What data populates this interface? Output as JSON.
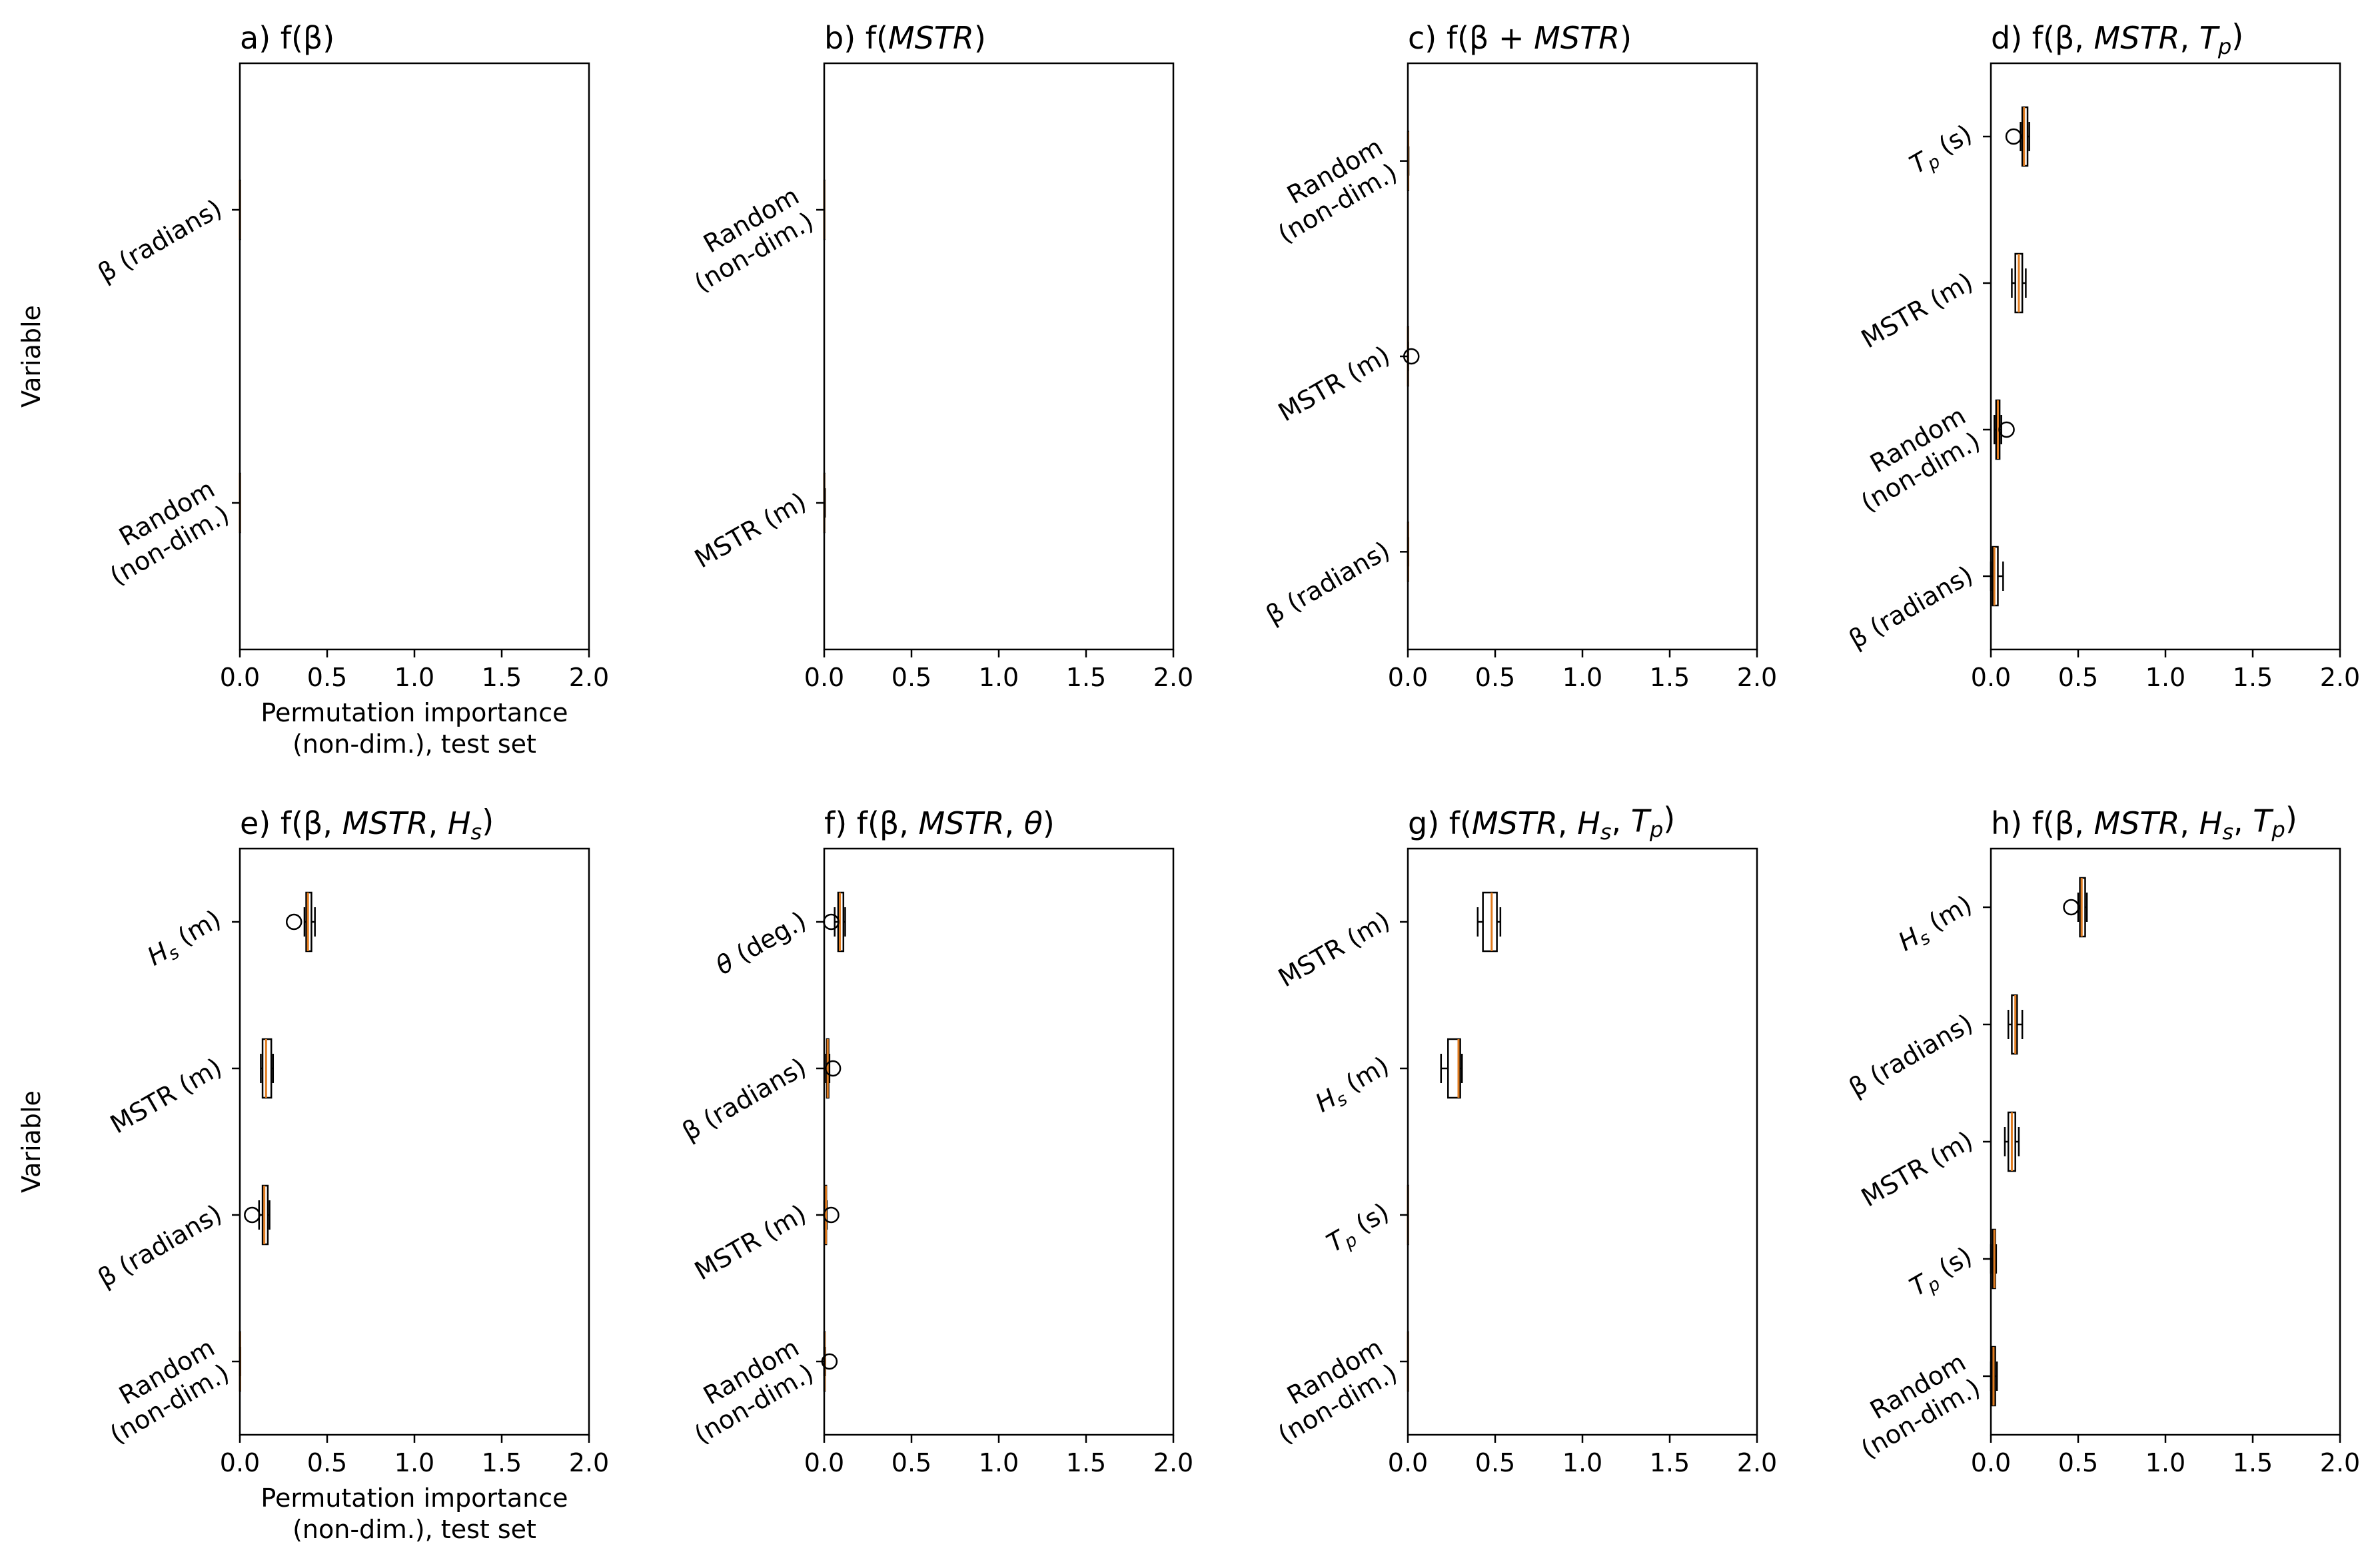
{
  "ylabel": "Variable",
  "xlabel_line1": "Permutation importance",
  "xlabel_line2": "(non-dim.), test set",
  "xticks": [
    "0.0",
    "0.5",
    "1.0",
    "1.5",
    "2.0"
  ],
  "colors": {
    "median": "#e07b1f",
    "box": "#000000"
  },
  "chart_data": [
    {
      "type": "boxplot",
      "orientation": "horizontal",
      "xlim": [
        0,
        2
      ],
      "title": "a) f(β)",
      "variables": [
        "β (radians)",
        "Random\n(non-dim.)"
      ],
      "boxes": [
        {
          "min": 0.0,
          "q1": 0.0,
          "median": 0.0,
          "q3": 0.0,
          "max": 0.0,
          "fliers": []
        },
        {
          "min": 0.0,
          "q1": 0.0,
          "median": 0.0,
          "q3": 0.0,
          "max": 0.0,
          "fliers": []
        }
      ]
    },
    {
      "type": "boxplot",
      "orientation": "horizontal",
      "xlim": [
        0,
        2
      ],
      "title": "b) f(MSTR)",
      "variables": [
        "Random\n(non-dim.)",
        "MSTR (m)"
      ],
      "boxes": [
        {
          "min": 0.0,
          "q1": 0.0,
          "median": 0.0,
          "q3": 0.0,
          "max": 0.0,
          "fliers": []
        },
        {
          "min": 0.0,
          "q1": 0.0,
          "median": 0.0,
          "q3": 0.0,
          "max": 0.005,
          "fliers": []
        }
      ]
    },
    {
      "type": "boxplot",
      "orientation": "horizontal",
      "xlim": [
        0,
        2
      ],
      "title": "c) f(β + MSTR)",
      "variables": [
        "Random\n(non-dim.)",
        "MSTR (m)",
        "β (radians)"
      ],
      "boxes": [
        {
          "min": 0.0,
          "q1": 0.0,
          "median": 0.002,
          "q3": 0.003,
          "max": 0.004,
          "fliers": []
        },
        {
          "min": 0.0,
          "q1": 0.0,
          "median": 0.0,
          "q3": 0.001,
          "max": 0.002,
          "fliers": [
            0.02
          ]
        },
        {
          "min": 0.0,
          "q1": 0.0,
          "median": 0.001,
          "q3": 0.002,
          "max": 0.003,
          "fliers": []
        }
      ]
    },
    {
      "type": "boxplot",
      "orientation": "horizontal",
      "xlim": [
        0,
        2
      ],
      "title": "d) f(β, MSTR, Tp)",
      "variables": [
        "Tp (s)",
        "MSTR (m)",
        "Random\n(non-dim.)",
        "β (radians)"
      ],
      "boxes": [
        {
          "min": 0.17,
          "q1": 0.18,
          "median": 0.19,
          "q3": 0.21,
          "max": 0.22,
          "fliers": [
            0.13
          ]
        },
        {
          "min": 0.12,
          "q1": 0.14,
          "median": 0.16,
          "q3": 0.18,
          "max": 0.2,
          "fliers": []
        },
        {
          "min": 0.02,
          "q1": 0.03,
          "median": 0.04,
          "q3": 0.05,
          "max": 0.06,
          "fliers": [
            0.09
          ]
        },
        {
          "min": 0.0,
          "q1": 0.01,
          "median": 0.02,
          "q3": 0.04,
          "max": 0.07,
          "fliers": []
        }
      ]
    },
    {
      "type": "boxplot",
      "orientation": "horizontal",
      "xlim": [
        0,
        2
      ],
      "title": "e) f(β, MSTR, Hs)",
      "variables": [
        "Hs (m)",
        "MSTR (m)",
        "β (radians)",
        "Random\n(non-dim.)"
      ],
      "boxes": [
        {
          "min": 0.37,
          "q1": 0.38,
          "median": 0.39,
          "q3": 0.41,
          "max": 0.43,
          "fliers": [
            0.31
          ]
        },
        {
          "min": 0.12,
          "q1": 0.13,
          "median": 0.15,
          "q3": 0.18,
          "max": 0.19,
          "fliers": []
        },
        {
          "min": 0.11,
          "q1": 0.13,
          "median": 0.14,
          "q3": 0.16,
          "max": 0.17,
          "fliers": [
            0.07
          ]
        },
        {
          "min": 0.0,
          "q1": 0.0,
          "median": 0.001,
          "q3": 0.002,
          "max": 0.003,
          "fliers": []
        }
      ]
    },
    {
      "type": "boxplot",
      "orientation": "horizontal",
      "xlim": [
        0,
        2
      ],
      "title": "f) f(β, MSTR, θ)",
      "variables": [
        "θ (deg.)",
        "β (radians)",
        "MSTR (m)",
        "Random\n(non-dim.)"
      ],
      "boxes": [
        {
          "min": 0.06,
          "q1": 0.08,
          "median": 0.09,
          "q3": 0.11,
          "max": 0.12,
          "fliers": [
            0.04
          ]
        },
        {
          "min": 0.01,
          "q1": 0.015,
          "median": 0.02,
          "q3": 0.025,
          "max": 0.03,
          "fliers": [
            0.05
          ]
        },
        {
          "min": 0.0,
          "q1": 0.005,
          "median": 0.01,
          "q3": 0.012,
          "max": 0.015,
          "fliers": [
            0.04
          ]
        },
        {
          "min": 0.0,
          "q1": 0.0,
          "median": 0.002,
          "q3": 0.004,
          "max": 0.006,
          "fliers": [
            0.03
          ]
        }
      ]
    },
    {
      "type": "boxplot",
      "orientation": "horizontal",
      "xlim": [
        0,
        2
      ],
      "title": "g) f(MSTR, Hs, Tp)",
      "variables": [
        "MSTR (m)",
        "Hs (m)",
        "Tp (s)",
        "Random\n(non-dim.)"
      ],
      "boxes": [
        {
          "min": 0.4,
          "q1": 0.43,
          "median": 0.48,
          "q3": 0.51,
          "max": 0.53,
          "fliers": []
        },
        {
          "min": 0.19,
          "q1": 0.23,
          "median": 0.29,
          "q3": 0.3,
          "max": 0.31,
          "fliers": []
        },
        {
          "min": 0.0,
          "q1": 0.0,
          "median": 0.0,
          "q3": 0.0,
          "max": 0.0,
          "fliers": []
        },
        {
          "min": 0.0,
          "q1": 0.0,
          "median": 0.0,
          "q3": 0.0,
          "max": 0.0,
          "fliers": []
        }
      ]
    },
    {
      "type": "boxplot",
      "orientation": "horizontal",
      "xlim": [
        0,
        2
      ],
      "title": "h) f(β, MSTR, Hs, Tp)",
      "variables": [
        "Hs (m)",
        "β (radians)",
        "MSTR (m)",
        "Tp (s)",
        "Random\n(non-dim.)"
      ],
      "boxes": [
        {
          "min": 0.5,
          "q1": 0.51,
          "median": 0.52,
          "q3": 0.54,
          "max": 0.55,
          "fliers": [
            0.46
          ]
        },
        {
          "min": 0.1,
          "q1": 0.12,
          "median": 0.14,
          "q3": 0.15,
          "max": 0.18,
          "fliers": []
        },
        {
          "min": 0.08,
          "q1": 0.1,
          "median": 0.12,
          "q3": 0.14,
          "max": 0.16,
          "fliers": []
        },
        {
          "min": 0.0,
          "q1": 0.01,
          "median": 0.02,
          "q3": 0.025,
          "max": 0.03,
          "fliers": []
        },
        {
          "min": 0.0,
          "q1": 0.005,
          "median": 0.015,
          "q3": 0.025,
          "max": 0.035,
          "fliers": []
        }
      ]
    }
  ]
}
